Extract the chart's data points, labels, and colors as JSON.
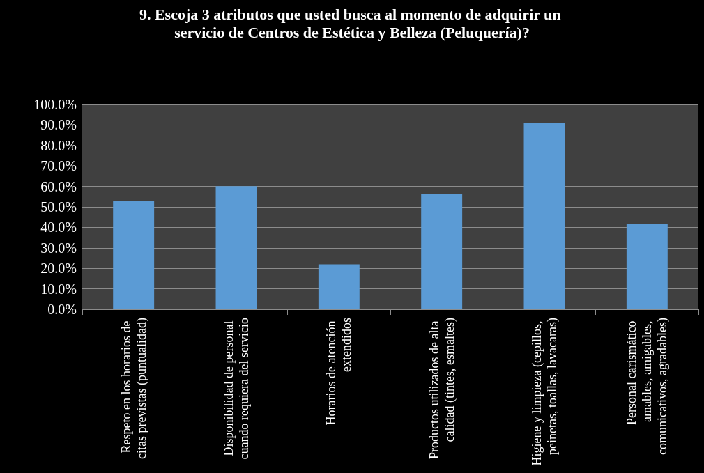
{
  "chart_data": {
    "type": "bar",
    "title": "9. Escoja 3 atributos que usted busca al momento de adquirir un servicio de Centros de Estética y Belleza (Peluquería)?",
    "categories": [
      "Respeto en los horarios de citas previstas (puntualidad)",
      "Disponibilidad de personal cuando requiera del servicio",
      "Horarios de atención extendidos",
      "Productos utilizados de alta calidad (tintes, esmaltes)",
      "Higiene y limpieza (cepillos, peinetas, toallas, lavacaras)",
      "Personal carismático amables, amigables, comunicativos, agradables)"
    ],
    "values": [
      52.9,
      60.1,
      21.9,
      56.3,
      90.9,
      41.8
    ],
    "color": "#5b9bd5",
    "ylim": [
      0,
      100
    ],
    "yticks": [
      {
        "value": 0,
        "label": "0.0%"
      },
      {
        "value": 10,
        "label": "10.0%"
      },
      {
        "value": 20,
        "label": "20.0%"
      },
      {
        "value": 30,
        "label": "30.0%"
      },
      {
        "value": 40,
        "label": "40.0%"
      },
      {
        "value": 50,
        "label": "50.0%"
      },
      {
        "value": 60,
        "label": "60.0%"
      },
      {
        "value": 70,
        "label": "70.0%"
      },
      {
        "value": 80,
        "label": "80.0%"
      },
      {
        "value": 90,
        "label": "90.0%"
      },
      {
        "value": 100,
        "label": "100.0%"
      }
    ],
    "grid": "y"
  }
}
